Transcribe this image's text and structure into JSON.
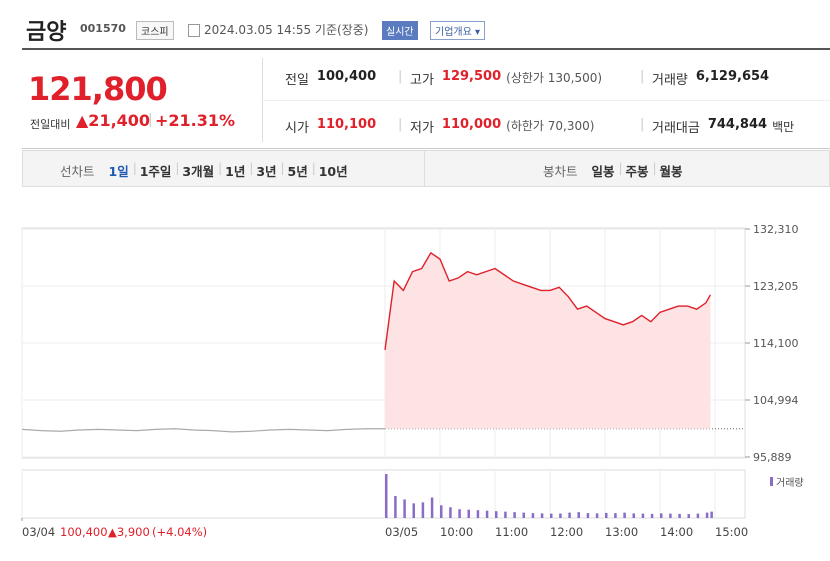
{
  "header": {
    "name": "금양",
    "code": "001570",
    "market": "코스피",
    "timestamp": "2024.03.05 14:55 기준(장중)",
    "realtime": "실시간",
    "company_info": "기업개요"
  },
  "quote": {
    "price": "121,800",
    "change_label": "전일대비",
    "change": "▲21,400",
    "change_pct": "+21.31%",
    "stats": [
      {
        "label": "전일",
        "value": "100,400"
      },
      {
        "label": "고가",
        "value": "129,500",
        "note": "(상한가 130,500)"
      },
      {
        "label": "거래량",
        "value": "6,129,654"
      },
      {
        "label": "시가",
        "value": "110,100"
      },
      {
        "label": "저가",
        "value": "110,000",
        "note": "(하한가 70,300)"
      },
      {
        "label": "거래대금",
        "value": "744,844",
        "unit": "백만"
      }
    ]
  },
  "tabs": {
    "line_label": "선차트",
    "line": [
      "1일",
      "1주일",
      "3개월",
      "1년",
      "3년",
      "5년",
      "10년"
    ],
    "candle_label": "봉차트",
    "candle": [
      "일봉",
      "주봉",
      "월봉"
    ]
  },
  "chart_data": {
    "type": "line",
    "volume_label": "거래량",
    "ylim": [
      95889,
      132310
    ],
    "yticks": [
      {
        "value": 132310,
        "label": "132,310"
      },
      {
        "value": 123205,
        "label": "123,205"
      },
      {
        "value": 114100,
        "label": "114,100"
      },
      {
        "value": 104994,
        "label": "104,994"
      },
      {
        "value": 95889,
        "label": "95,889"
      }
    ],
    "xticks": [
      "03/04",
      "03/05",
      "10:00",
      "11:00",
      "12:00",
      "13:00",
      "14:00",
      "15:00"
    ],
    "base": 100400,
    "prev_day": [
      100300,
      100100,
      100000,
      100200,
      100300,
      100200,
      100100,
      100300,
      100400,
      100200,
      100100,
      99900,
      100000,
      100200,
      100300,
      100200,
      100100,
      100300,
      100400,
      100400
    ],
    "today": {
      "x": [
        "09:00",
        "09:10",
        "09:20",
        "09:30",
        "09:40",
        "09:50",
        "10:00",
        "10:10",
        "10:20",
        "10:30",
        "10:40",
        "10:50",
        "11:00",
        "11:10",
        "11:20",
        "11:30",
        "11:40",
        "11:50",
        "12:00",
        "12:10",
        "12:20",
        "12:30",
        "12:40",
        "12:50",
        "13:00",
        "13:10",
        "13:20",
        "13:30",
        "13:40",
        "13:50",
        "14:00",
        "14:10",
        "14:20",
        "14:30",
        "14:40",
        "14:50",
        "14:55"
      ],
      "values": [
        113000,
        124000,
        122500,
        125500,
        126000,
        128500,
        127500,
        124000,
        124500,
        125500,
        125000,
        125500,
        126000,
        125000,
        124000,
        123500,
        123000,
        122500,
        122500,
        123000,
        121500,
        119500,
        120000,
        119000,
        118000,
        117500,
        117000,
        117500,
        118500,
        117500,
        119000,
        119500,
        120000,
        120000,
        119500,
        120500,
        121800
      ],
      "volume": [
        900000,
        450000,
        380000,
        300000,
        320000,
        420000,
        260000,
        220000,
        180000,
        170000,
        160000,
        150000,
        140000,
        130000,
        120000,
        110000,
        100000,
        95000,
        90000,
        92000,
        110000,
        120000,
        100000,
        95000,
        105000,
        100000,
        110000,
        95000,
        90000,
        85000,
        95000,
        90000,
        85000,
        80000,
        90000,
        110000,
        130000
      ]
    },
    "legend": {
      "date": "03/04",
      "close": "100,400",
      "change": "▲3,900",
      "change_pct": "(+4.04%)"
    }
  }
}
